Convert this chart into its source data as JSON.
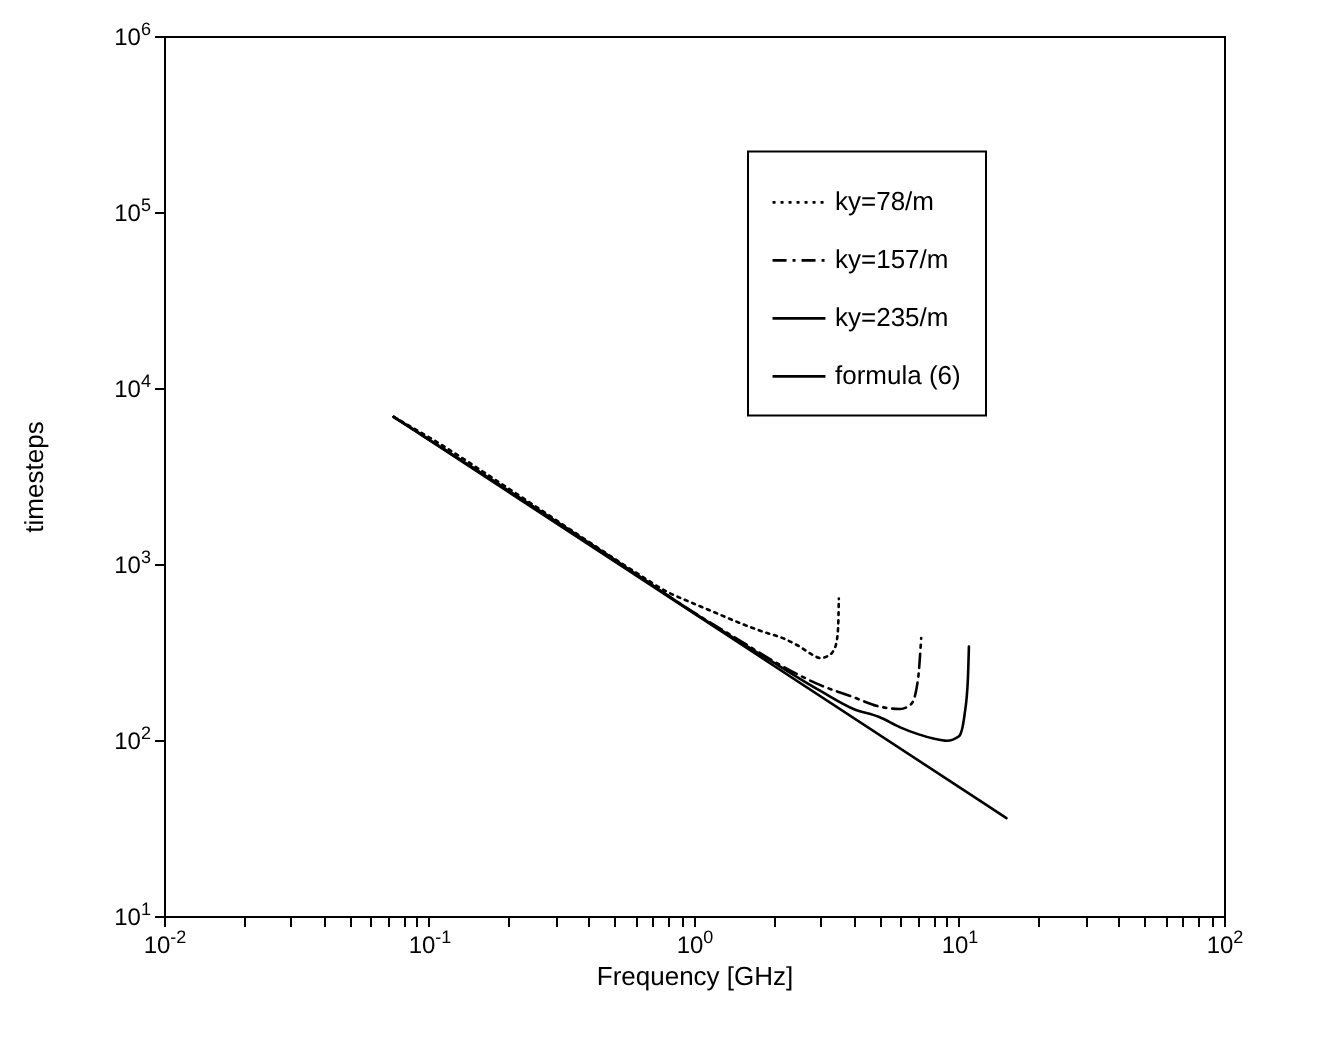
{
  "chart_data": {
    "type": "line",
    "xlabel": "Frequency [GHz]",
    "ylabel": "timesteps",
    "log": "xy",
    "grid": false,
    "legend": "top right",
    "xlim": [
      0.01,
      100
    ],
    "ylim": [
      10,
      1000000
    ],
    "xticks": [
      {
        "value": 0.01,
        "label": "10$^{-2}$"
      },
      {
        "value": 0.02,
        "label": null
      },
      {
        "value": 0.03,
        "label": null
      },
      {
        "value": 0.04,
        "label": null
      },
      {
        "value": 0.05,
        "label": null
      },
      {
        "value": 0.06,
        "label": null
      },
      {
        "value": 0.07,
        "label": null
      },
      {
        "value": 0.08,
        "label": null
      },
      {
        "value": 0.09,
        "label": null
      },
      {
        "value": 0.1,
        "label": "10$^{-1}$"
      },
      {
        "value": 0.2,
        "label": null
      },
      {
        "value": 0.3,
        "label": null
      },
      {
        "value": 0.4,
        "label": null
      },
      {
        "value": 0.5,
        "label": null
      },
      {
        "value": 0.6,
        "label": null
      },
      {
        "value": 0.7,
        "label": null
      },
      {
        "value": 0.8,
        "label": null
      },
      {
        "value": 0.9,
        "label": null
      },
      {
        "value": 1,
        "label": "10$^{0}$"
      },
      {
        "value": 2,
        "label": null
      },
      {
        "value": 3,
        "label": null
      },
      {
        "value": 4,
        "label": null
      },
      {
        "value": 5,
        "label": null
      },
      {
        "value": 6,
        "label": null
      },
      {
        "value": 7,
        "label": null
      },
      {
        "value": 8,
        "label": null
      },
      {
        "value": 9,
        "label": null
      },
      {
        "value": 10,
        "label": "10$^{1}$"
      },
      {
        "value": 20,
        "label": null
      },
      {
        "value": 30,
        "label": null
      },
      {
        "value": 40,
        "label": null
      },
      {
        "value": 50,
        "label": null
      },
      {
        "value": 60,
        "label": null
      },
      {
        "value": 70,
        "label": null
      },
      {
        "value": 80,
        "label": null
      },
      {
        "value": 90,
        "label": null
      },
      {
        "value": 100,
        "label": "10$^{2}$"
      }
    ],
    "yticks": [
      {
        "value": 10,
        "label": "10$^{1}$"
      },
      {
        "value": 100,
        "label": "10$^{2}$"
      },
      {
        "value": 1000,
        "label": "10$^{3}$"
      },
      {
        "value": 10000,
        "label": "10$^{4}$"
      },
      {
        "value": 100000,
        "label": "10$^{5}$"
      },
      {
        "value": 1000000,
        "label": "10$^{6}$"
      }
    ],
    "series": [
      {
        "name": "ky=78/m",
        "color": "#000000",
        "line_style": "dotted",
        "x": [
          0.0736,
          0.1,
          0.2,
          0.4,
          0.6,
          0.8,
          1.0,
          1.2,
          1.5,
          1.8,
          2.2,
          2.5,
          2.8,
          3.0,
          3.2,
          3.35,
          3.45,
          3.5,
          3.52
        ],
        "values": [
          6850,
          5250,
          2680,
          1340,
          900,
          690,
          595,
          530,
          460,
          415,
          375,
          340,
          305,
          292,
          300,
          320,
          360,
          444,
          636
        ]
      },
      {
        "name": "ky=157/m",
        "color": "#000000",
        "line_style": "dashed",
        "x": [
          0.0736,
          0.5,
          1.0,
          1.5,
          2,
          3,
          4,
          5,
          6,
          6.6,
          7.0,
          7.2
        ],
        "values": [
          6850,
          1060,
          530,
          365,
          280,
          205,
          175,
          155,
          150,
          160,
          220,
          380
        ]
      },
      {
        "name": "ky=235/m",
        "color": "#000000",
        "line_style": "solid",
        "x": [
          0.0736,
          0.5,
          1.0,
          2,
          3,
          4,
          5,
          6,
          7,
          8,
          9,
          10,
          10.5,
          10.8,
          10.9
        ],
        "values": [
          6850,
          1060,
          528,
          275,
          190,
          150,
          135,
          118,
          108,
          102,
          99,
          105,
          140,
          220,
          340
        ]
      },
      {
        "name": "formula (6)",
        "color": "#000000",
        "line_style": "solid",
        "x": [
          0.0736,
          1,
          15.1
        ],
        "values": [
          6850,
          524,
          36
        ]
      }
    ]
  }
}
